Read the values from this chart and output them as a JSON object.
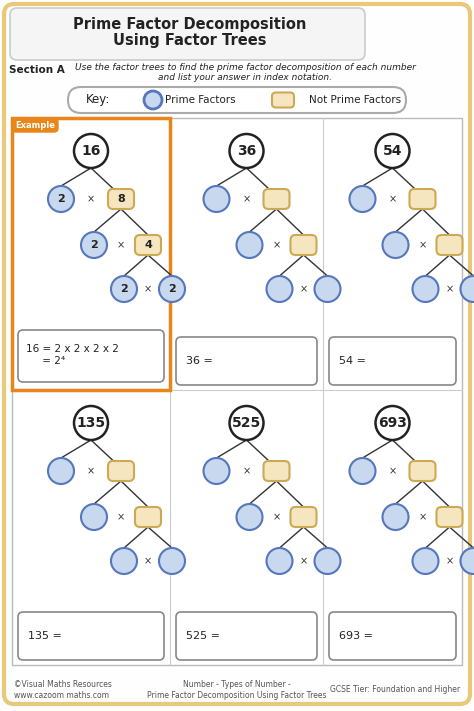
{
  "title_line1": "Prime Factor Decomposition",
  "title_line2": "Using Factor Trees",
  "section_a_label": "Section A",
  "section_a_text": "Use the factor trees to find the prime factor decomposition of each number\nand list your answer in index notation.",
  "key_text": "Key:",
  "key_prime": "Prime Factors",
  "key_not_prime": "Not Prime Factors",
  "example_label": "Example",
  "bg_color": "#ffffff",
  "outer_border_color": "#E8C97A",
  "example_border_color": "#E8861A",
  "circle_fill": "#c8d8ee",
  "circle_edge": "#5577bb",
  "rect_fill": "#f5e6c0",
  "rect_edge": "#ccaa55",
  "top_circle_fill": "#ffffff",
  "top_circle_edge": "#222222",
  "footer_left": "©Visual Maths Resources\nwww.cazoom maths.com",
  "footer_center": "Number - Types of Number -\nPrime Factor Decomposition Using Factor Trees",
  "footer_right": "GCSE Tier: Foundation and Higher",
  "example_answer": "16 = 2 x 2 x 2 x 2\n     = 2⁴",
  "numbers": [
    "16",
    "36",
    "54",
    "135",
    "525",
    "693"
  ]
}
